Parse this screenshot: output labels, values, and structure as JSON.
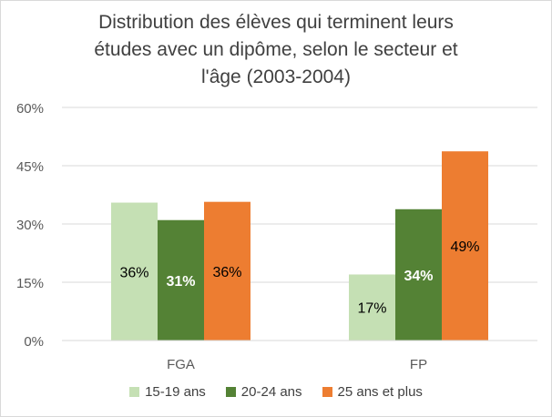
{
  "chart_data": {
    "type": "bar",
    "title_lines": [
      "Distribution des élèves qui terminent leurs",
      "études avec un dipôme, selon le secteur et",
      "l'âge (2003-2004)"
    ],
    "categories": [
      "FGA",
      "FP"
    ],
    "series": [
      {
        "name": "15-19 ans",
        "values": [
          0.355,
          0.17
        ],
        "labels": [
          "36%",
          "17%"
        ],
        "color": "#c5e0b4"
      },
      {
        "name": "20-24 ans",
        "values": [
          0.31,
          0.338
        ],
        "labels": [
          "31%",
          "34%"
        ],
        "color": "#548235"
      },
      {
        "name": "25 ans et plus",
        "values": [
          0.357,
          0.487
        ],
        "labels": [
          "36%",
          "49%"
        ],
        "color": "#ed7d31"
      }
    ],
    "y_ticks": [
      0,
      0.15,
      0.3,
      0.45,
      0.6
    ],
    "y_tick_labels": [
      "0%",
      "15%",
      "30%",
      "45%",
      "60%"
    ],
    "ylim": [
      0,
      0.6
    ],
    "grid": true,
    "legend_position": "bottom",
    "label_colors": [
      "#000000",
      "#ffffff",
      "#000000"
    ]
  }
}
